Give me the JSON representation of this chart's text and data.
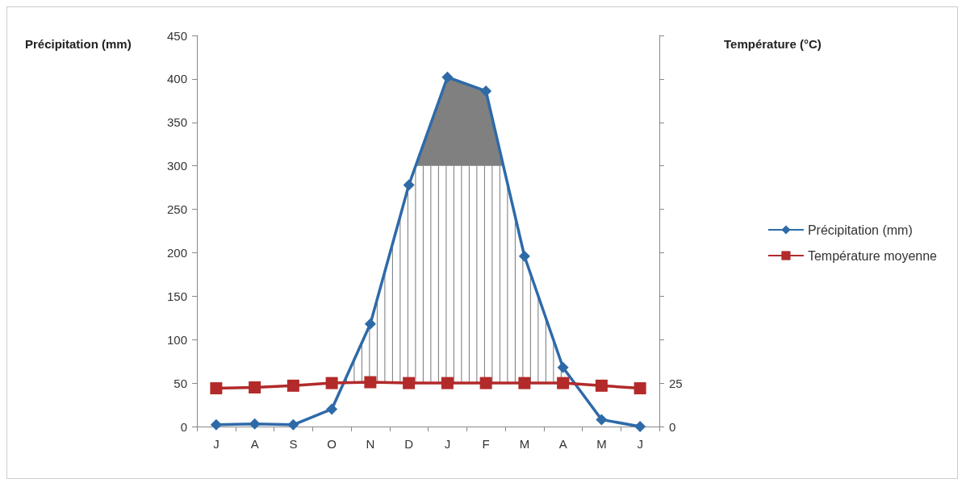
{
  "chart_data": {
    "type": "line",
    "ylabel": "Précipitation (mm)",
    "y2label": "Température (°C)",
    "categories": [
      "J",
      "A",
      "S",
      "O",
      "N",
      "D",
      "J",
      "F",
      "M",
      "A",
      "M",
      "J"
    ],
    "series": [
      {
        "name": "Précipitation (mm)",
        "color": "#2e6aa8",
        "marker": "diamond",
        "values": [
          2,
          3,
          2,
          20,
          118,
          278,
          402,
          386,
          196,
          68,
          8,
          0
        ]
      },
      {
        "name": "Température moyenne",
        "color": "#b22a2a",
        "marker": "square",
        "axis": "y2",
        "values": [
          22,
          22.5,
          23.5,
          25,
          25.5,
          25,
          25,
          25,
          25,
          25,
          23.5,
          22
        ]
      }
    ],
    "ylim": [
      0,
      450
    ],
    "yticks": [
      0,
      50,
      100,
      150,
      200,
      250,
      300,
      350,
      400,
      450
    ],
    "y2lim": [
      0,
      225
    ],
    "y2ticks": [
      0,
      25,
      {
        "value": 50,
        "label": null
      },
      {
        "value": 75,
        "label": null
      },
      {
        "value": 100,
        "label": null
      },
      {
        "value": 125,
        "label": null
      },
      {
        "value": 150,
        "label": null
      },
      {
        "value": 175,
        "label": null
      },
      {
        "value": 200,
        "label": null
      },
      {
        "value": 225,
        "label": null
      }
    ],
    "grid": false,
    "legend": "right"
  }
}
